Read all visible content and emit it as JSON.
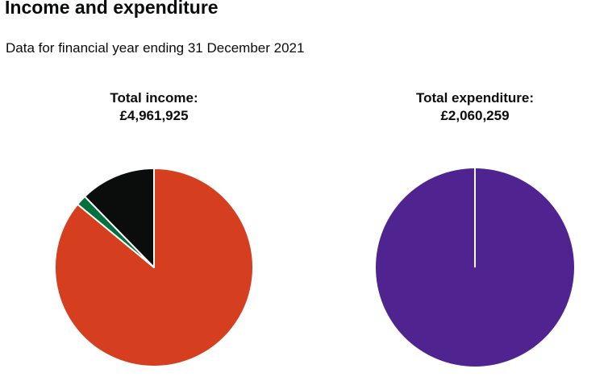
{
  "heading": "Income and expenditure",
  "subheading": "Data for financial year ending 31 December 2021",
  "chart_data": [
    {
      "type": "pie",
      "title": "Total income:",
      "total": "£4,961,925",
      "slices": [
        {
          "share": 0.86,
          "color": "#d53f20"
        },
        {
          "share": 0.017,
          "color": "#00703c"
        },
        {
          "share": 0.123,
          "color": "#0b0c0c"
        }
      ]
    },
    {
      "type": "pie",
      "title": "Total expenditure:",
      "total": "£2,060,259",
      "slices": [
        {
          "share": 1.0,
          "color": "#4f2491"
        }
      ]
    }
  ]
}
